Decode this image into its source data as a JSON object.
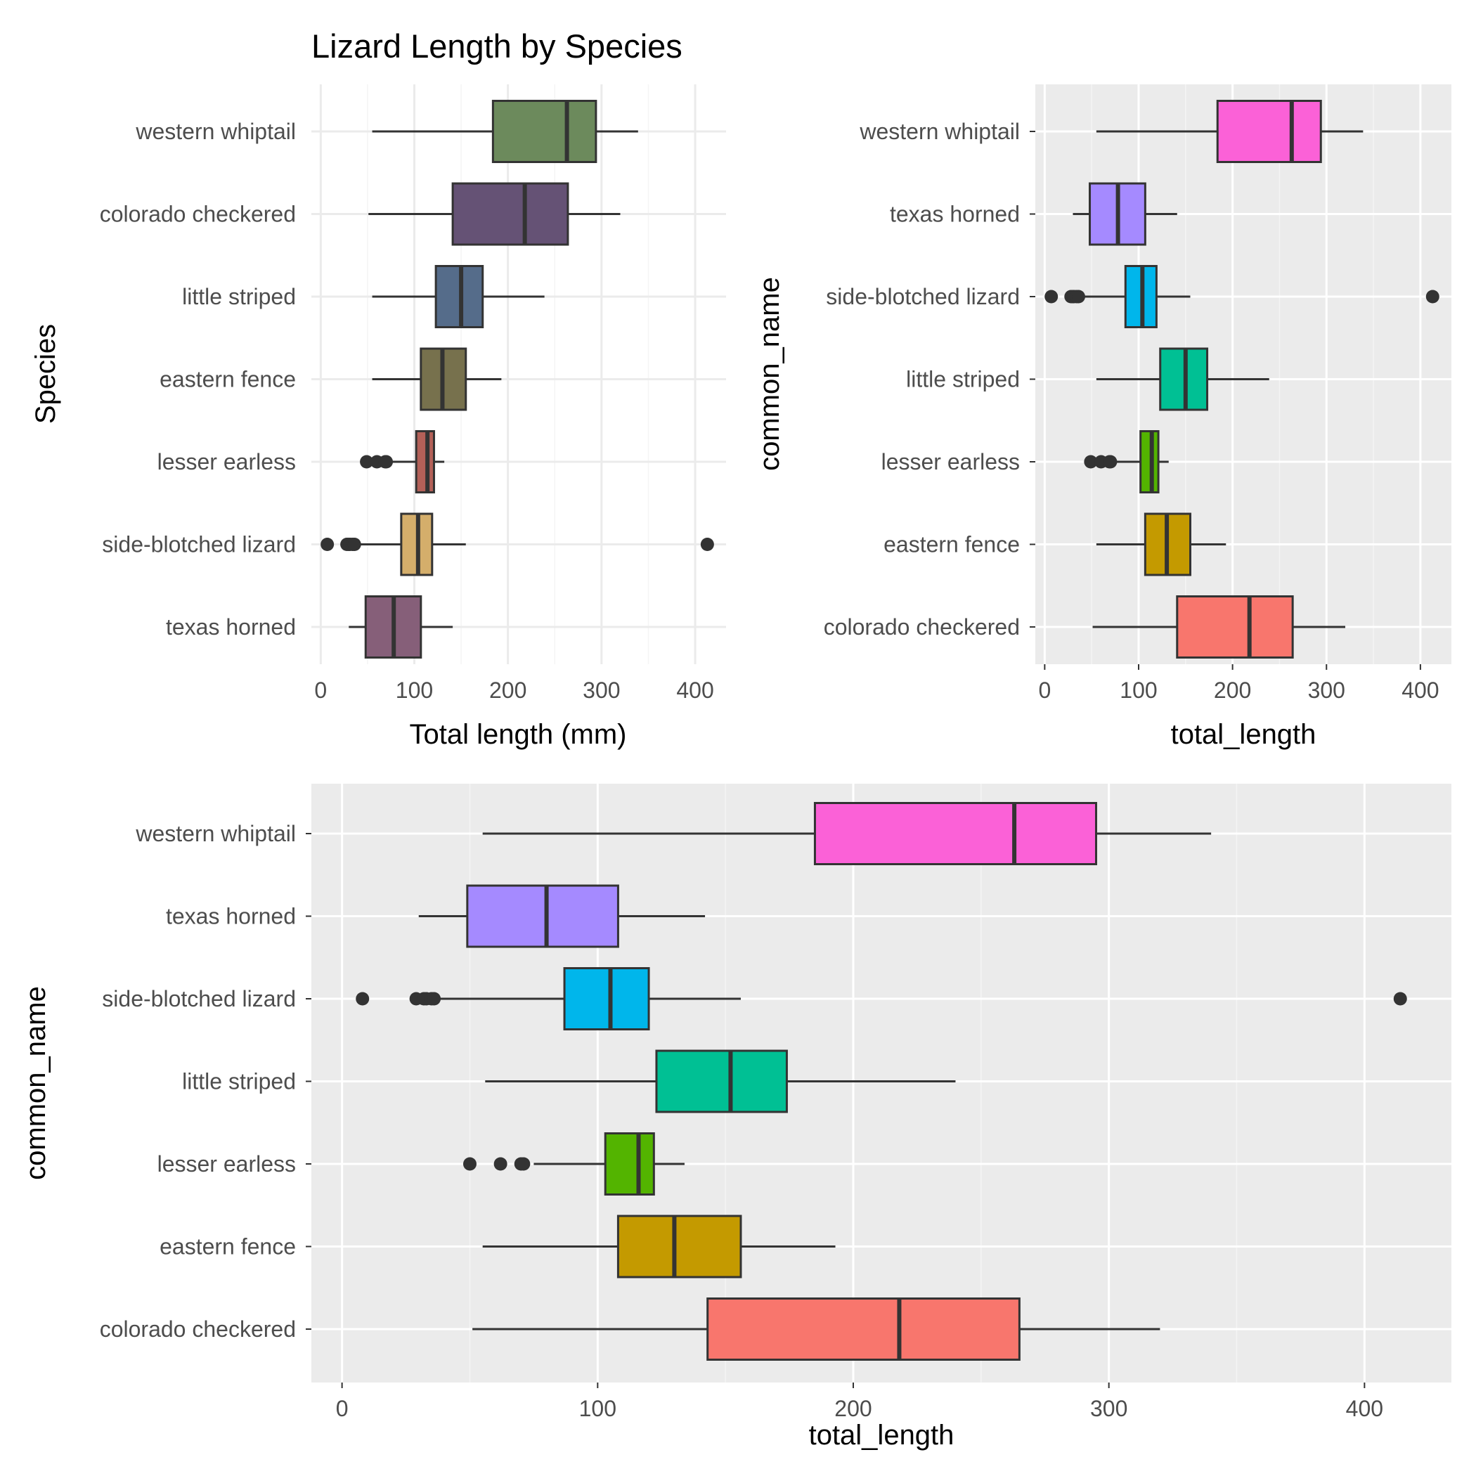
{
  "chart_data": [
    {
      "type": "boxplot",
      "title": "Lizard Length by Species",
      "xlabel": "Total length (mm)",
      "ylabel": "Species",
      "xlim": [
        -10,
        433
      ],
      "x_ticks": [
        0,
        100,
        200,
        300,
        400
      ],
      "theme": "minimal",
      "grid": true,
      "legend": "none",
      "categories": [
        "texas horned",
        "side-blotched lizard",
        "lesser earless",
        "eastern fence",
        "little striped",
        "colorado checkered",
        "western whiptail"
      ],
      "boxes": [
        {
          "category": "texas horned",
          "whisker_low": 30,
          "q1": 48,
          "median": 78,
          "q3": 107,
          "whisker_high": 141,
          "outliers": [],
          "fill": "#865f79"
        },
        {
          "category": "side-blotched lizard",
          "whisker_low": 39,
          "q1": 86,
          "median": 104,
          "q3": 119,
          "whisker_high": 155,
          "outliers": [
            7,
            28,
            30,
            31,
            34,
            36,
            413
          ],
          "fill": "#d4ae6b"
        },
        {
          "category": "lesser earless",
          "whisker_low": 75,
          "q1": 102,
          "median": 114,
          "q3": 121,
          "whisker_high": 132,
          "outliers": [
            49,
            60,
            69,
            70
          ],
          "fill": "#b36058"
        },
        {
          "category": "eastern fence",
          "whisker_low": 55,
          "q1": 107,
          "median": 130,
          "q3": 155,
          "whisker_high": 193,
          "outliers": [],
          "fill": "#77714d"
        },
        {
          "category": "little striped",
          "whisker_low": 55,
          "q1": 123,
          "median": 150,
          "q3": 173,
          "whisker_high": 239,
          "outliers": [],
          "fill": "#556c8a"
        },
        {
          "category": "colorado checkered",
          "whisker_low": 51,
          "q1": 141,
          "median": 218,
          "q3": 264,
          "whisker_high": 320,
          "outliers": [],
          "fill": "#655275"
        },
        {
          "category": "western whiptail",
          "whisker_low": 55,
          "q1": 184,
          "median": 263,
          "q3": 294,
          "whisker_high": 339,
          "outliers": [],
          "fill": "#6c8a5c"
        }
      ]
    },
    {
      "type": "boxplot",
      "xlabel": "total_length",
      "ylabel": "common_name",
      "xlim": [
        -10,
        433
      ],
      "x_ticks": [
        0,
        100,
        200,
        300,
        400
      ],
      "theme": "grey",
      "grid": true,
      "legend": "none",
      "categories": [
        "colorado checkered",
        "eastern fence",
        "lesser earless",
        "little striped",
        "side-blotched lizard",
        "texas horned",
        "western whiptail"
      ],
      "boxes": [
        {
          "category": "colorado checkered",
          "whisker_low": 51,
          "q1": 141,
          "median": 218,
          "q3": 264,
          "whisker_high": 320,
          "outliers": [],
          "fill": "#f8766d"
        },
        {
          "category": "eastern fence",
          "whisker_low": 55,
          "q1": 107,
          "median": 130,
          "q3": 155,
          "whisker_high": 193,
          "outliers": [],
          "fill": "#c49a00"
        },
        {
          "category": "lesser earless",
          "whisker_low": 75,
          "q1": 102,
          "median": 114,
          "q3": 121,
          "whisker_high": 132,
          "outliers": [
            49,
            60,
            69,
            70
          ],
          "fill": "#53b400"
        },
        {
          "category": "little striped",
          "whisker_low": 55,
          "q1": 123,
          "median": 150,
          "q3": 173,
          "whisker_high": 239,
          "outliers": [],
          "fill": "#00c094"
        },
        {
          "category": "side-blotched lizard",
          "whisker_low": 39,
          "q1": 86,
          "median": 104,
          "q3": 119,
          "whisker_high": 155,
          "outliers": [
            7,
            28,
            30,
            31,
            34,
            36,
            413
          ],
          "fill": "#00b6eb"
        },
        {
          "category": "texas horned",
          "whisker_low": 30,
          "q1": 48,
          "median": 78,
          "q3": 107,
          "whisker_high": 141,
          "outliers": [],
          "fill": "#a58aff"
        },
        {
          "category": "western whiptail",
          "whisker_low": 55,
          "q1": 184,
          "median": 263,
          "q3": 294,
          "whisker_high": 339,
          "outliers": [],
          "fill": "#fb61d7"
        }
      ]
    },
    {
      "type": "boxplot",
      "xlabel": "total_length",
      "ylabel": "common_name",
      "xlim": [
        -12,
        434
      ],
      "x_ticks": [
        0,
        100,
        200,
        300,
        400
      ],
      "theme": "grey",
      "grid": true,
      "legend": "none",
      "categories": [
        "colorado checkered",
        "eastern fence",
        "lesser earless",
        "little striped",
        "side-blotched lizard",
        "texas horned",
        "western whiptail"
      ],
      "boxes": [
        {
          "category": "colorado checkered",
          "whisker_low": 51,
          "q1": 143,
          "median": 218,
          "q3": 265,
          "whisker_high": 320,
          "outliers": [],
          "fill": "#f8766d"
        },
        {
          "category": "eastern fence",
          "whisker_low": 55,
          "q1": 108,
          "median": 130,
          "q3": 156,
          "whisker_high": 193,
          "outliers": [],
          "fill": "#c49a00"
        },
        {
          "category": "lesser earless",
          "whisker_low": 75,
          "q1": 103,
          "median": 116,
          "q3": 122,
          "whisker_high": 134,
          "outliers": [
            50,
            62,
            70,
            71
          ],
          "fill": "#53b400"
        },
        {
          "category": "little striped",
          "whisker_low": 56,
          "q1": 123,
          "median": 152,
          "q3": 174,
          "whisker_high": 240,
          "outliers": [],
          "fill": "#00c094"
        },
        {
          "category": "side-blotched lizard",
          "whisker_low": 38,
          "q1": 87,
          "median": 105,
          "q3": 120,
          "whisker_high": 156,
          "outliers": [
            8,
            29,
            32,
            33,
            35,
            36,
            414
          ],
          "fill": "#00b6eb"
        },
        {
          "category": "texas horned",
          "whisker_low": 30,
          "q1": 49,
          "median": 80,
          "q3": 108,
          "whisker_high": 142,
          "outliers": [],
          "fill": "#a58aff"
        },
        {
          "category": "western whiptail",
          "whisker_low": 55,
          "q1": 185,
          "median": 263,
          "q3": 295,
          "whisker_high": 340,
          "outliers": [],
          "fill": "#fb61d7"
        }
      ]
    }
  ]
}
